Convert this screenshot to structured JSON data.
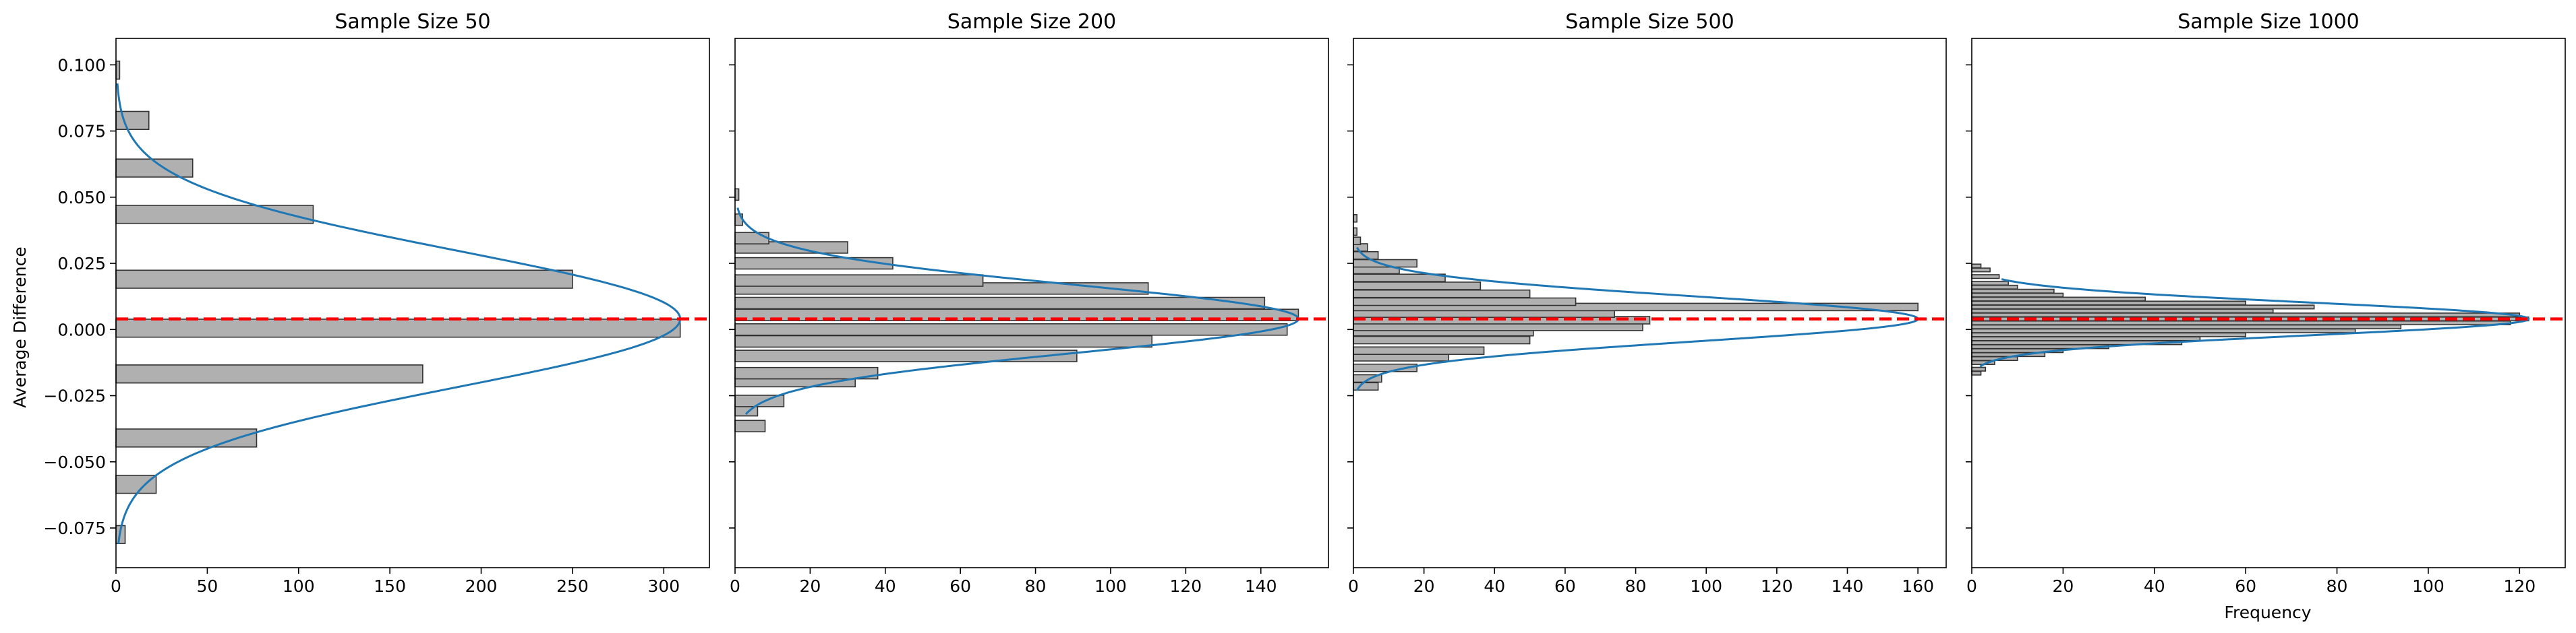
{
  "ylabel": "Average Difference",
  "xlabel": "Frequency",
  "reference_line": {
    "value": 0.004,
    "color": "#ff0000",
    "style": "dashed"
  },
  "colors": {
    "bar_fill": "#b0b0b0",
    "bar_edge": "#333333",
    "curve": "#1f77b4"
  },
  "ylim": [
    -0.09,
    0.11
  ],
  "yticks": [
    -0.075,
    -0.05,
    -0.025,
    0.0,
    0.025,
    0.05,
    0.075,
    0.1
  ],
  "ytick_labels": [
    "−0.075",
    "−0.050",
    "−0.025",
    "0.000",
    "0.025",
    "0.050",
    "0.075",
    "0.100"
  ],
  "chart_data": [
    {
      "type": "histogram",
      "orientation": "horizontal",
      "title": "Sample Size 50",
      "xlim": [
        0,
        325
      ],
      "xticks": [
        0,
        50,
        100,
        150,
        200,
        250,
        300
      ],
      "bin_height": 0.0068,
      "bins": [
        {
          "y": -0.0775,
          "count": 5
        },
        {
          "y": -0.0585,
          "count": 22
        },
        {
          "y": -0.041,
          "count": 77
        },
        {
          "y": -0.0168,
          "count": 168
        },
        {
          "y": 0.0005,
          "count": 309
        },
        {
          "y": 0.019,
          "count": 250
        },
        {
          "y": 0.0435,
          "count": 108
        },
        {
          "y": 0.061,
          "count": 42
        },
        {
          "y": 0.079,
          "count": 18
        },
        {
          "y": 0.098,
          "count": 2
        }
      ],
      "normal_fit": {
        "mean": 0.004,
        "sd": 0.0257,
        "peak": 309,
        "y_range": [
          -0.081,
          0.093
        ]
      }
    },
    {
      "type": "histogram",
      "orientation": "horizontal",
      "title": "Sample Size 200",
      "xlim": [
        0,
        158
      ],
      "xticks": [
        0,
        20,
        40,
        60,
        80,
        100,
        120,
        140
      ],
      "bin_height": 0.0043,
      "bins": [
        {
          "y": -0.0365,
          "count": 8
        },
        {
          "y": -0.0305,
          "count": 6
        },
        {
          "y": -0.027,
          "count": 13
        },
        {
          "y": -0.0195,
          "count": 32
        },
        {
          "y": -0.0165,
          "count": 38
        },
        {
          "y": -0.01,
          "count": 91
        },
        {
          "y": -0.0045,
          "count": 111
        },
        {
          "y": 0.0,
          "count": 147
        },
        {
          "y": 0.0055,
          "count": 150
        },
        {
          "y": 0.01,
          "count": 141
        },
        {
          "y": 0.0155,
          "count": 110
        },
        {
          "y": 0.0185,
          "count": 66
        },
        {
          "y": 0.025,
          "count": 42
        },
        {
          "y": 0.031,
          "count": 30
        },
        {
          "y": 0.0345,
          "count": 9
        },
        {
          "y": 0.0415,
          "count": 2
        },
        {
          "y": 0.051,
          "count": 1
        }
      ],
      "normal_fit": {
        "mean": 0.004,
        "sd": 0.0128,
        "peak": 150,
        "y_range": [
          -0.032,
          0.046
        ]
      }
    },
    {
      "type": "histogram",
      "orientation": "horizontal",
      "title": "Sample Size 500",
      "xlim": [
        0,
        168
      ],
      "xticks": [
        0,
        20,
        40,
        60,
        80,
        100,
        120,
        140,
        160
      ],
      "bin_height": 0.0028,
      "bins": [
        {
          "y": -0.0215,
          "count": 7
        },
        {
          "y": -0.0185,
          "count": 8
        },
        {
          "y": -0.0145,
          "count": 18
        },
        {
          "y": -0.0105,
          "count": 27
        },
        {
          "y": -0.008,
          "count": 37
        },
        {
          "y": -0.004,
          "count": 50
        },
        {
          "y": -0.001,
          "count": 51
        },
        {
          "y": 0.001,
          "count": 82
        },
        {
          "y": 0.0035,
          "count": 84
        },
        {
          "y": 0.006,
          "count": 74
        },
        {
          "y": 0.0085,
          "count": 160
        },
        {
          "y": 0.0105,
          "count": 63
        },
        {
          "y": 0.0135,
          "count": 50
        },
        {
          "y": 0.0165,
          "count": 36
        },
        {
          "y": 0.0195,
          "count": 26
        },
        {
          "y": 0.0225,
          "count": 13
        },
        {
          "y": 0.025,
          "count": 18
        },
        {
          "y": 0.028,
          "count": 7
        },
        {
          "y": 0.031,
          "count": 4
        },
        {
          "y": 0.0335,
          "count": 2
        },
        {
          "y": 0.037,
          "count": 1
        },
        {
          "y": 0.042,
          "count": 1
        }
      ],
      "normal_fit": {
        "mean": 0.004,
        "sd": 0.0085,
        "peak": 160,
        "y_range": [
          -0.023,
          0.031
        ]
      }
    },
    {
      "type": "histogram",
      "orientation": "horizontal",
      "title": "Sample Size 1000",
      "xlim": [
        0,
        130
      ],
      "xticks": [
        0,
        20,
        40,
        60,
        80,
        100,
        120
      ],
      "bin_height": 0.0014,
      "bins": [
        {
          "y": -0.0165,
          "count": 2
        },
        {
          "y": -0.015,
          "count": 3
        },
        {
          "y": -0.0125,
          "count": 5
        },
        {
          "y": -0.011,
          "count": 10
        },
        {
          "y": -0.0095,
          "count": 16
        },
        {
          "y": -0.008,
          "count": 20
        },
        {
          "y": -0.0065,
          "count": 30
        },
        {
          "y": -0.005,
          "count": 46
        },
        {
          "y": -0.0035,
          "count": 50
        },
        {
          "y": -0.002,
          "count": 60
        },
        {
          "y": -0.0005,
          "count": 84
        },
        {
          "y": 0.001,
          "count": 94
        },
        {
          "y": 0.0025,
          "count": 118
        },
        {
          "y": 0.004,
          "count": 122
        },
        {
          "y": 0.0055,
          "count": 120
        },
        {
          "y": 0.007,
          "count": 66
        },
        {
          "y": 0.0085,
          "count": 75
        },
        {
          "y": 0.01,
          "count": 60
        },
        {
          "y": 0.0115,
          "count": 38
        },
        {
          "y": 0.013,
          "count": 20
        },
        {
          "y": 0.0145,
          "count": 18
        },
        {
          "y": 0.016,
          "count": 10
        },
        {
          "y": 0.0175,
          "count": 8
        },
        {
          "y": 0.02,
          "count": 6
        },
        {
          "y": 0.0225,
          "count": 4
        },
        {
          "y": 0.024,
          "count": 2
        }
      ],
      "normal_fit": {
        "mean": 0.004,
        "sd": 0.0062,
        "peak": 122,
        "y_range": [
          -0.014,
          0.019
        ]
      }
    }
  ]
}
